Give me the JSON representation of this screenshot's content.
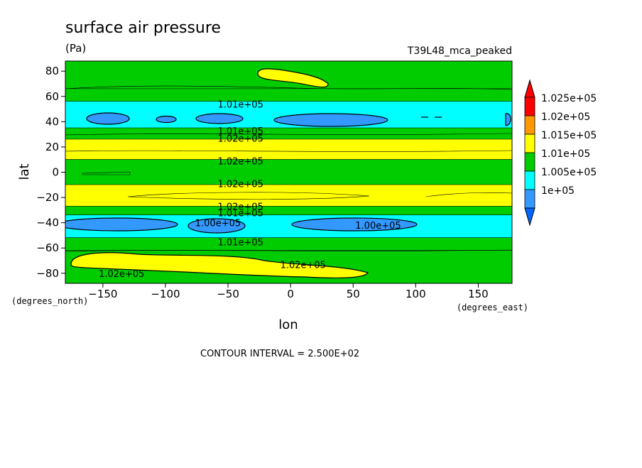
{
  "chart_data": {
    "type": "heatmap",
    "title": "surface air pressure",
    "units_label": "(Pa)",
    "run_label": "T39L48_mca_peaked",
    "xlabel": "lon",
    "ylabel": "lat",
    "x_unit_label": "(degrees_east)",
    "y_unit_label": "(degrees_north)",
    "footer": "CONTOUR INTERVAL = 2.500E+02",
    "xlim": [
      -180,
      177
    ],
    "ylim": [
      -88,
      88
    ],
    "x_ticks": [
      -150,
      -100,
      -50,
      0,
      50,
      100,
      150
    ],
    "y_ticks": [
      -80,
      -60,
      -40,
      -20,
      0,
      20,
      40,
      60,
      80
    ],
    "colorbar": {
      "labels": [
        "1.025e+05",
        "1.02e+05",
        "1.015e+05",
        "1.01e+05",
        "1.005e+05",
        "1e+05"
      ],
      "colors": [
        "#ff0000",
        "#ff9900",
        "#ffff00",
        "#00cc00",
        "#00ffff",
        "#3399ff"
      ],
      "triangle_top": "#ff0000",
      "triangle_bottom": "#0066ff"
    },
    "bands": [
      {
        "lat_min": 66,
        "lat_max": 88,
        "level": "1.01e+05"
      },
      {
        "lat_min": 56,
        "lat_max": 66,
        "level": "1.01e+05"
      },
      {
        "lat_min": 35,
        "lat_max": 56,
        "level": "1.005e+05"
      },
      {
        "lat_min": 26,
        "lat_max": 35,
        "level": "1.01e+05"
      },
      {
        "lat_min": 10,
        "lat_max": 26,
        "level": "1.015e+05"
      },
      {
        "lat_min": -10,
        "lat_max": 10,
        "level": "1.01e+05"
      },
      {
        "lat_min": -27,
        "lat_max": -10,
        "level": "1.015e+05"
      },
      {
        "lat_min": -34,
        "lat_max": -27,
        "level": "1.01e+05"
      },
      {
        "lat_min": -52,
        "lat_max": -34,
        "level": "1.005e+05"
      },
      {
        "lat_min": -62,
        "lat_max": -52,
        "level": "1.01e+05"
      },
      {
        "lat_min": -88,
        "lat_max": -62,
        "level": "1.01e+05"
      }
    ],
    "contour_labels": [
      {
        "text": "1.01e+05",
        "lon": -40,
        "lat": 54
      },
      {
        "text": "1.01e+05",
        "lon": -40,
        "lat": 33
      },
      {
        "text": "1.02e+05",
        "lon": -40,
        "lat": 27
      },
      {
        "text": "1.02e+05",
        "lon": -40,
        "lat": 9
      },
      {
        "text": "1.02e+05",
        "lon": -40,
        "lat": -9
      },
      {
        "text": "1.02e+05",
        "lon": -40,
        "lat": -27
      },
      {
        "text": "1.01e+05",
        "lon": -40,
        "lat": -32
      },
      {
        "text": "1.00e+05",
        "lon": -58,
        "lat": -40
      },
      {
        "text": "1.00e+05",
        "lon": 70,
        "lat": -42
      },
      {
        "text": "1.01e+05",
        "lon": -40,
        "lat": -55
      },
      {
        "text": "1.02e+05",
        "lon": 10,
        "lat": -73
      },
      {
        "text": "1.02e+05",
        "lon": -135,
        "lat": -80
      }
    ]
  }
}
